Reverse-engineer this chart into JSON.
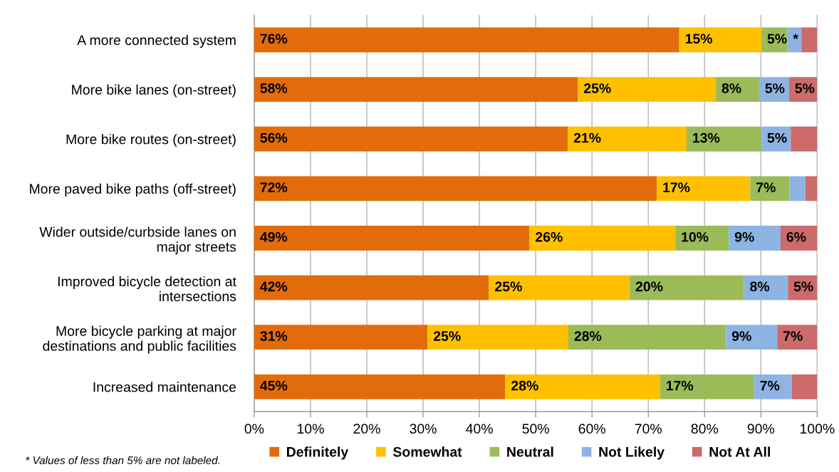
{
  "chart_data": {
    "type": "bar",
    "orientation": "horizontal",
    "stacked": true,
    "categories": [
      "A more connected system",
      "More bike lanes (on-street)",
      "More bike routes (on-street)",
      "More paved bike paths (off-street)",
      "Wider outside/curbside lanes on\nmajor streets",
      "Improved bicycle detection at\nintersections",
      "More bicycle parking at major\ndestinations and public facilities",
      "Increased maintenance"
    ],
    "series": [
      {
        "name": "Definitely",
        "color": "#e36c0a",
        "values": [
          75.5,
          57.5,
          55.7,
          71.5,
          48.9,
          41.7,
          30.8,
          44.6
        ],
        "value_labels": [
          "76%",
          "58%",
          "56%",
          "72%",
          "49%",
          "42%",
          "31%",
          "45%"
        ]
      },
      {
        "name": "Somewhat",
        "color": "#ffc000",
        "values": [
          14.6,
          24.5,
          21.1,
          16.6,
          25.9,
          25.0,
          25.0,
          27.5
        ],
        "value_labels": [
          "15%",
          "25%",
          "21%",
          "17%",
          "26%",
          "25%",
          "25%",
          "28%"
        ]
      },
      {
        "name": "Neutral",
        "color": "#9bbb59",
        "values": [
          4.6,
          7.7,
          13.3,
          7.0,
          9.5,
          20.3,
          28.0,
          16.7
        ],
        "value_labels": [
          "5%",
          "8%",
          "13%",
          "7%",
          "10%",
          "20%",
          "28%",
          "17%"
        ]
      },
      {
        "name": "Not Likely",
        "color": "#8eb4e3",
        "values": [
          2.5,
          5.3,
          5.2,
          2.8,
          9.2,
          7.8,
          9.1,
          6.7
        ],
        "value_labels": [
          "*",
          "5%",
          "5%",
          null,
          "9%",
          "8%",
          "9%",
          "7%"
        ]
      },
      {
        "name": "Not At All",
        "color": "#cd6b6b",
        "values": [
          2.8,
          5.0,
          4.7,
          2.1,
          6.5,
          5.2,
          7.1,
          4.5
        ],
        "value_labels": [
          null,
          "5%",
          null,
          null,
          "6%",
          "5%",
          "7%",
          null
        ]
      }
    ],
    "xlim": [
      0,
      100
    ],
    "xticks": [
      {
        "value": 0,
        "label": "0%"
      },
      {
        "value": 10,
        "label": "10%"
      },
      {
        "value": 20,
        "label": "20%"
      },
      {
        "value": 30,
        "label": "30%"
      },
      {
        "value": 40,
        "label": "40%"
      },
      {
        "value": 50,
        "label": "50%"
      },
      {
        "value": 60,
        "label": "60%"
      },
      {
        "value": 70,
        "label": "70%"
      },
      {
        "value": 80,
        "label": "80%"
      },
      {
        "value": 90,
        "label": "90%"
      },
      {
        "value": 100,
        "label": "100%"
      }
    ],
    "grid": "x",
    "legend": "bottom",
    "annotations": [
      "* Values of less than 5% are not labeled."
    ]
  }
}
